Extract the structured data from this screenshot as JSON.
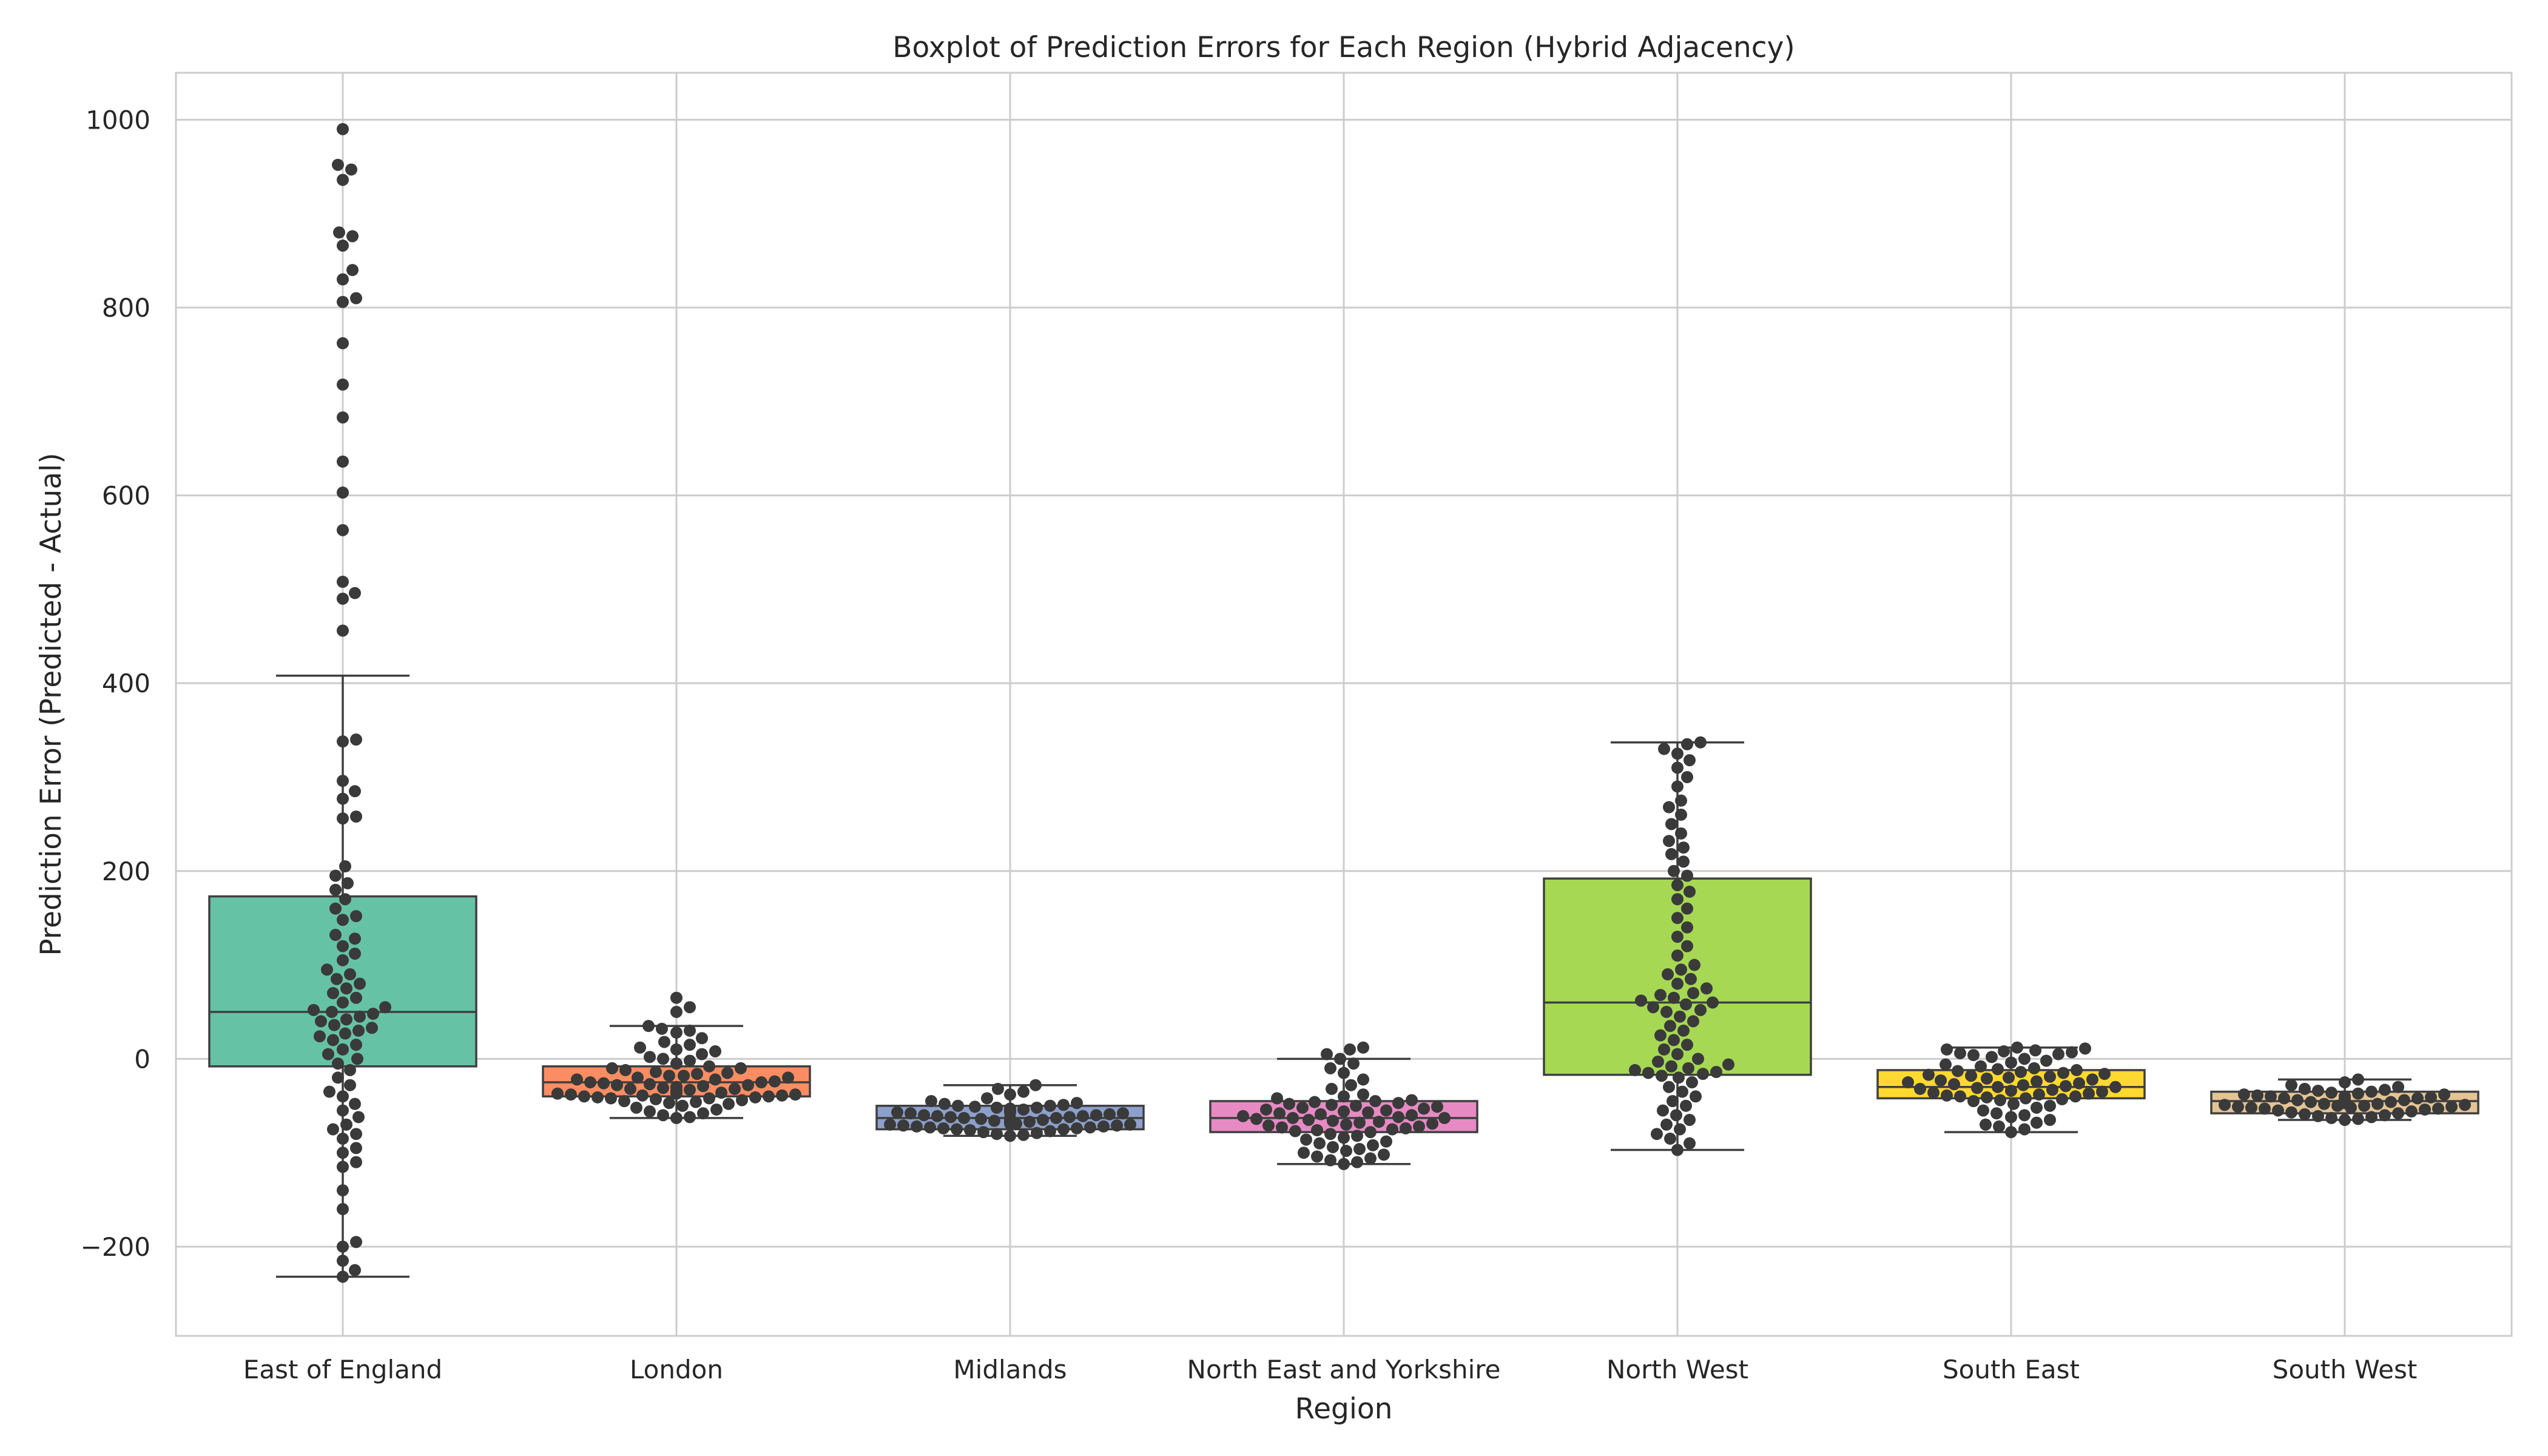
{
  "chart_data": {
    "type": "box",
    "title": "Boxplot of Prediction Errors for Each Region (Hybrid Adjacency)",
    "xlabel": "Region",
    "ylabel": "Prediction Error (Predicted - Actual)",
    "ylim": [
      -295,
      1050
    ],
    "yticks": [
      -200,
      0,
      200,
      400,
      600,
      800,
      1000
    ],
    "ytick_labels": [
      "−200",
      "0",
      "200",
      "400",
      "600",
      "800",
      "1000"
    ],
    "grid": true,
    "overlay": "swarm",
    "point_color": "#3a3a3a",
    "categories": [
      "East of England",
      "London",
      "Midlands",
      "North East and Yorkshire",
      "North West",
      "South East",
      "South West"
    ],
    "boxes": [
      {
        "name": "East of England",
        "color": "#66c2a5",
        "whisker_low": -232,
        "q1": -8,
        "median": 50,
        "q3": 173,
        "whisker_high": 408,
        "points": [
          990,
          952,
          947,
          936,
          880,
          876,
          866,
          840,
          830,
          810,
          806,
          762,
          718,
          683,
          636,
          603,
          563,
          508,
          496,
          490,
          456,
          340,
          338,
          296,
          285,
          277,
          258,
          256,
          205,
          195,
          187,
          180,
          170,
          160,
          152,
          148,
          132,
          128,
          120,
          112,
          105,
          95,
          90,
          85,
          80,
          75,
          70,
          65,
          60,
          55,
          52,
          50,
          48,
          45,
          42,
          40,
          36,
          33,
          30,
          27,
          24,
          20,
          15,
          10,
          5,
          0,
          -5,
          -12,
          -20,
          -28,
          -35,
          -40,
          -48,
          -55,
          -62,
          -70,
          -75,
          -80,
          -85,
          -95,
          -100,
          -110,
          -115,
          -140,
          -160,
          -195,
          -200,
          -215,
          -225,
          -232
        ]
      },
      {
        "name": "London",
        "color": "#fc8d62",
        "whisker_low": -63,
        "q1": -40,
        "median": -25,
        "q3": -8,
        "whisker_high": 35,
        "points": [
          65,
          55,
          50,
          35,
          32,
          30,
          28,
          22,
          18,
          15,
          12,
          10,
          8,
          5,
          2,
          0,
          -2,
          -5,
          -8,
          -10,
          -10,
          -12,
          -14,
          -15,
          -16,
          -18,
          -18,
          -20,
          -20,
          -22,
          -22,
          -24,
          -25,
          -25,
          -26,
          -27,
          -28,
          -28,
          -29,
          -30,
          -30,
          -31,
          -32,
          -32,
          -33,
          -34,
          -34,
          -35,
          -35,
          -36,
          -36,
          -37,
          -37,
          -38,
          -38,
          -39,
          -39,
          -40,
          -40,
          -41,
          -41,
          -42,
          -42,
          -43,
          -44,
          -45,
          -46,
          -47,
          -48,
          -50,
          -52,
          -54,
          -56,
          -58,
          -60,
          -62,
          -63
        ]
      },
      {
        "name": "Midlands",
        "color": "#8da0cb",
        "whisker_low": -82,
        "q1": -75,
        "median": -63,
        "q3": -50,
        "whisker_high": -28,
        "points": [
          -28,
          -32,
          -35,
          -38,
          -42,
          -45,
          -47,
          -48,
          -49,
          -50,
          -50,
          -51,
          -52,
          -52,
          -53,
          -54,
          -54,
          -55,
          -55,
          -56,
          -57,
          -57,
          -58,
          -58,
          -59,
          -60,
          -60,
          -61,
          -61,
          -62,
          -62,
          -63,
          -63,
          -63,
          -64,
          -64,
          -65,
          -65,
          -66,
          -66,
          -67,
          -67,
          -68,
          -68,
          -69,
          -69,
          -70,
          -70,
          -71,
          -71,
          -72,
          -72,
          -73,
          -73,
          -74,
          -74,
          -75,
          -75,
          -76,
          -77,
          -78,
          -79,
          -80,
          -81,
          -82
        ]
      },
      {
        "name": "North East and Yorkshire",
        "color": "#e78ac3",
        "whisker_low": -112,
        "q1": -78,
        "median": -63,
        "q3": -45,
        "whisker_high": 0,
        "points": [
          12,
          10,
          5,
          0,
          -5,
          -10,
          -15,
          -22,
          -28,
          -32,
          -38,
          -40,
          -42,
          -44,
          -45,
          -46,
          -47,
          -48,
          -49,
          -50,
          -51,
          -52,
          -53,
          -54,
          -55,
          -56,
          -57,
          -58,
          -59,
          -60,
          -61,
          -62,
          -63,
          -63,
          -64,
          -65,
          -66,
          -67,
          -68,
          -69,
          -70,
          -71,
          -72,
          -73,
          -74,
          -75,
          -76,
          -77,
          -78,
          -80,
          -82,
          -84,
          -86,
          -88,
          -90,
          -92,
          -94,
          -96,
          -98,
          -100,
          -102,
          -104,
          -106,
          -108,
          -110,
          -112
        ]
      },
      {
        "name": "North West",
        "color": "#a6d854",
        "whisker_low": -97,
        "q1": -17,
        "median": 60,
        "q3": 192,
        "whisker_high": 337,
        "points": [
          337,
          335,
          330,
          325,
          318,
          310,
          300,
          290,
          275,
          268,
          260,
          250,
          240,
          232,
          225,
          218,
          210,
          200,
          195,
          185,
          178,
          170,
          160,
          150,
          140,
          130,
          120,
          110,
          100,
          95,
          90,
          85,
          80,
          75,
          70,
          68,
          65,
          62,
          60,
          58,
          55,
          52,
          50,
          45,
          40,
          35,
          30,
          25,
          20,
          15,
          10,
          5,
          0,
          -3,
          -6,
          -8,
          -10,
          -12,
          -14,
          -15,
          -16,
          -18,
          -20,
          -25,
          -30,
          -35,
          -40,
          -45,
          -50,
          -55,
          -60,
          -65,
          -70,
          -75,
          -80,
          -85,
          -90,
          -97
        ]
      },
      {
        "name": "South East",
        "color": "#ffd92f",
        "whisker_low": -78,
        "q1": -42,
        "median": -30,
        "q3": -12,
        "whisker_high": 12,
        "points": [
          12,
          11,
          10,
          9,
          8,
          7,
          6,
          5,
          4,
          2,
          0,
          -2,
          -4,
          -6,
          -8,
          -10,
          -11,
          -12,
          -13,
          -14,
          -15,
          -16,
          -17,
          -18,
          -19,
          -20,
          -21,
          -22,
          -23,
          -24,
          -25,
          -26,
          -27,
          -28,
          -29,
          -30,
          -30,
          -31,
          -32,
          -33,
          -34,
          -35,
          -36,
          -37,
          -38,
          -39,
          -40,
          -40,
          -41,
          -42,
          -43,
          -44,
          -45,
          -48,
          -50,
          -52,
          -55,
          -58,
          -60,
          -62,
          -65,
          -68,
          -70,
          -72,
          -75,
          -78
        ]
      },
      {
        "name": "South West",
        "color": "#e5c494",
        "whisker_low": -65,
        "q1": -58,
        "median": -45,
        "q3": -35,
        "whisker_high": -22,
        "points": [
          -22,
          -25,
          -28,
          -30,
          -32,
          -33,
          -34,
          -35,
          -36,
          -37,
          -38,
          -38,
          -39,
          -40,
          -40,
          -41,
          -42,
          -42,
          -43,
          -43,
          -44,
          -44,
          -45,
          -45,
          -46,
          -46,
          -47,
          -47,
          -48,
          -48,
          -49,
          -49,
          -50,
          -50,
          -51,
          -51,
          -52,
          -52,
          -53,
          -53,
          -54,
          -55,
          -56,
          -57,
          -58,
          -59,
          -60,
          -61,
          -62,
          -63,
          -64,
          -65
        ]
      }
    ]
  }
}
